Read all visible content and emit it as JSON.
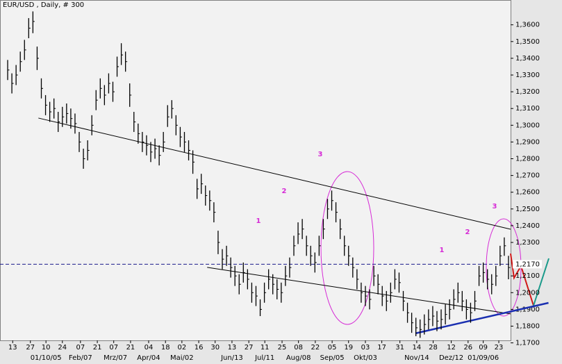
{
  "chart_data": {
    "type": "ohlc",
    "title": "EUR/USD , Daily, # 300",
    "color": "#000000",
    "xlim": [
      -0.5,
      119.5
    ],
    "ylim": [
      1.169,
      1.3715
    ],
    "yticks": [
      {
        "value": 1.36,
        "label": "1,3600"
      },
      {
        "value": 1.35,
        "label": "1,3500"
      },
      {
        "value": 1.34,
        "label": "1,3400"
      },
      {
        "value": 1.33,
        "label": "1,3300"
      },
      {
        "value": 1.32,
        "label": "1,3200"
      },
      {
        "value": 1.31,
        "label": "1,3100"
      },
      {
        "value": 1.3,
        "label": "1,3000"
      },
      {
        "value": 1.29,
        "label": "1,2900"
      },
      {
        "value": 1.28,
        "label": "1,2800"
      },
      {
        "value": 1.27,
        "label": "1,2700"
      },
      {
        "value": 1.26,
        "label": "1,2600"
      },
      {
        "value": 1.25,
        "label": "1,2500"
      },
      {
        "value": 1.24,
        "label": "1,2400"
      },
      {
        "value": 1.23,
        "label": "1,2300"
      },
      {
        "value": 1.21,
        "label": "1,2100"
      },
      {
        "value": 1.2,
        "label": "1,2000"
      },
      {
        "value": 1.19,
        "label": "1,1900"
      },
      {
        "value": 1.18,
        "label": "1,1800"
      },
      {
        "value": 1.17,
        "label": "1,1700"
      }
    ],
    "ref_line": {
      "value": 1.217,
      "label": "1,2170",
      "color": "#1a1a8c"
    },
    "xticks": [
      {
        "value": 1.2,
        "label": "13"
      },
      {
        "value": 5.4,
        "label": "27"
      },
      {
        "value": 9.1,
        "label": "10"
      },
      {
        "value": 13.0,
        "label": "24"
      },
      {
        "value": 17.3,
        "label": "07"
      },
      {
        "value": 21.3,
        "label": "21"
      },
      {
        "value": 25.2,
        "label": "07"
      },
      {
        "value": 29.2,
        "label": "21"
      },
      {
        "value": 33.5,
        "label": "04"
      },
      {
        "value": 37.5,
        "label": "18"
      },
      {
        "value": 41.4,
        "label": "02"
      },
      {
        "value": 45.4,
        "label": "16"
      },
      {
        "value": 49.3,
        "label": "30"
      },
      {
        "value": 53.3,
        "label": "13"
      },
      {
        "value": 57.3,
        "label": "27"
      },
      {
        "value": 61.1,
        "label": "11"
      },
      {
        "value": 65.2,
        "label": "25"
      },
      {
        "value": 69.1,
        "label": "08"
      },
      {
        "value": 73.1,
        "label": "22"
      },
      {
        "value": 77.1,
        "label": "05"
      },
      {
        "value": 81.0,
        "label": "19"
      },
      {
        "value": 85.0,
        "label": "03"
      },
      {
        "value": 88.9,
        "label": "17"
      },
      {
        "value": 93.2,
        "label": "31"
      },
      {
        "value": 97.2,
        "label": "14"
      },
      {
        "value": 101.1,
        "label": "28"
      },
      {
        "value": 105.4,
        "label": "12"
      },
      {
        "value": 109.4,
        "label": "26"
      },
      {
        "value": 113.0,
        "label": "09"
      },
      {
        "value": 116.7,
        "label": "23"
      }
    ],
    "xticks_period": [
      {
        "value": 9.1,
        "label": "01/10/05"
      },
      {
        "value": 17.3,
        "label": "Feb/07"
      },
      {
        "value": 25.6,
        "label": "Mrz/07"
      },
      {
        "value": 33.5,
        "label": "Apr/04"
      },
      {
        "value": 41.4,
        "label": "Mai/02"
      },
      {
        "value": 53.3,
        "label": "Jun/13"
      },
      {
        "value": 61.1,
        "label": "Jul/11"
      },
      {
        "value": 69.1,
        "label": "Aug/08"
      },
      {
        "value": 77.1,
        "label": "Sep/05"
      },
      {
        "value": 85.0,
        "label": "Okt/03"
      },
      {
        "value": 97.2,
        "label": "Nov/14"
      },
      {
        "value": 105.4,
        "label": "Dez/12"
      },
      {
        "value": 113.0,
        "label": "01/09/06"
      }
    ],
    "high": [
      1.339,
      1.331,
      1.336,
      1.344,
      1.351,
      1.364,
      1.368,
      1.347,
      1.328,
      1.318,
      1.314,
      1.316,
      1.308,
      1.311,
      1.313,
      1.31,
      1.307,
      1.296,
      1.286,
      1.291,
      1.306,
      1.321,
      1.328,
      1.324,
      1.331,
      1.326,
      1.341,
      1.349,
      1.344,
      1.325,
      1.308,
      1.301,
      1.296,
      1.294,
      1.29,
      1.292,
      1.288,
      1.296,
      1.312,
      1.315,
      1.306,
      1.299,
      1.296,
      1.291,
      1.285,
      1.268,
      1.271,
      1.264,
      1.261,
      1.254,
      1.237,
      1.226,
      1.228,
      1.221,
      1.216,
      1.211,
      1.218,
      1.214,
      1.206,
      1.204,
      1.196,
      1.206,
      1.214,
      1.211,
      1.208,
      1.206,
      1.216,
      1.221,
      1.234,
      1.242,
      1.244,
      1.234,
      1.228,
      1.224,
      1.234,
      1.244,
      1.256,
      1.261,
      1.254,
      1.244,
      1.234,
      1.228,
      1.221,
      1.214,
      1.206,
      1.204,
      1.202,
      1.216,
      1.211,
      1.204,
      1.201,
      1.206,
      1.214,
      1.212,
      1.201,
      1.194,
      1.188,
      1.185,
      1.184,
      1.187,
      1.19,
      1.192,
      1.189,
      1.19,
      1.193,
      1.196,
      1.202,
      1.206,
      1.201,
      1.196,
      1.194,
      1.201,
      1.216,
      1.218,
      1.214,
      1.211,
      1.216,
      1.228,
      1.233,
      1.222
    ],
    "low": [
      1.327,
      1.319,
      1.324,
      1.332,
      1.339,
      1.352,
      1.355,
      1.333,
      1.316,
      1.306,
      1.302,
      1.304,
      1.296,
      1.299,
      1.301,
      1.298,
      1.295,
      1.284,
      1.274,
      1.279,
      1.294,
      1.309,
      1.316,
      1.312,
      1.319,
      1.314,
      1.329,
      1.336,
      1.332,
      1.311,
      1.296,
      1.289,
      1.284,
      1.282,
      1.278,
      1.28,
      1.276,
      1.284,
      1.299,
      1.304,
      1.294,
      1.287,
      1.284,
      1.279,
      1.271,
      1.256,
      1.259,
      1.252,
      1.249,
      1.242,
      1.223,
      1.214,
      1.216,
      1.209,
      1.204,
      1.199,
      1.206,
      1.202,
      1.194,
      1.192,
      1.186,
      1.194,
      1.202,
      1.199,
      1.196,
      1.194,
      1.204,
      1.209,
      1.222,
      1.229,
      1.232,
      1.222,
      1.216,
      1.212,
      1.222,
      1.232,
      1.244,
      1.249,
      1.242,
      1.232,
      1.222,
      1.216,
      1.209,
      1.202,
      1.194,
      1.192,
      1.19,
      1.204,
      1.199,
      1.192,
      1.189,
      1.194,
      1.202,
      1.2,
      1.189,
      1.182,
      1.176,
      1.174,
      1.173,
      1.175,
      1.178,
      1.18,
      1.177,
      1.178,
      1.181,
      1.184,
      1.19,
      1.194,
      1.189,
      1.184,
      1.182,
      1.189,
      1.204,
      1.206,
      1.202,
      1.199,
      1.204,
      1.216,
      1.222,
      1.208
    ],
    "close": [
      1.333,
      1.325,
      1.33,
      1.338,
      1.345,
      1.358,
      1.362,
      1.34,
      1.322,
      1.312,
      1.308,
      1.31,
      1.302,
      1.305,
      1.307,
      1.304,
      1.301,
      1.29,
      1.28,
      1.285,
      1.3,
      1.315,
      1.322,
      1.318,
      1.325,
      1.32,
      1.335,
      1.342,
      1.338,
      1.318,
      1.302,
      1.295,
      1.29,
      1.288,
      1.284,
      1.286,
      1.282,
      1.29,
      1.305,
      1.31,
      1.3,
      1.293,
      1.29,
      1.285,
      1.278,
      1.262,
      1.265,
      1.258,
      1.255,
      1.248,
      1.23,
      1.22,
      1.222,
      1.215,
      1.21,
      1.205,
      1.212,
      1.208,
      1.2,
      1.198,
      1.19,
      1.2,
      1.208,
      1.205,
      1.202,
      1.2,
      1.21,
      1.215,
      1.228,
      1.235,
      1.238,
      1.228,
      1.222,
      1.218,
      1.228,
      1.238,
      1.25,
      1.255,
      1.248,
      1.238,
      1.228,
      1.222,
      1.215,
      1.208,
      1.2,
      1.198,
      1.196,
      1.21,
      1.205,
      1.198,
      1.195,
      1.2,
      1.208,
      1.206,
      1.195,
      1.188,
      1.182,
      1.179,
      1.178,
      1.181,
      1.184,
      1.186,
      1.183,
      1.184,
      1.187,
      1.19,
      1.196,
      1.2,
      1.195,
      1.19,
      1.188,
      1.195,
      1.21,
      1.212,
      1.208,
      1.205,
      1.21,
      1.222,
      1.228,
      1.215
    ],
    "trendlines": [
      {
        "x": [
          7.3,
          119.5
        ],
        "y": [
          1.3043,
          1.2379
        ],
        "color": "#000000"
      },
      {
        "x": [
          47.4,
          119.5
        ],
        "y": [
          1.2151,
          1.1873
        ],
        "color": "#000000"
      },
      {
        "x": [
          96.9,
          128.5
        ],
        "y": [
          1.1757,
          1.1939
        ],
        "color": "#1a2fb0"
      }
    ],
    "wave_labels": [
      "1",
      "2",
      "3",
      "1",
      "2",
      "3"
    ],
    "wave_color": "#d62ad6"
  }
}
